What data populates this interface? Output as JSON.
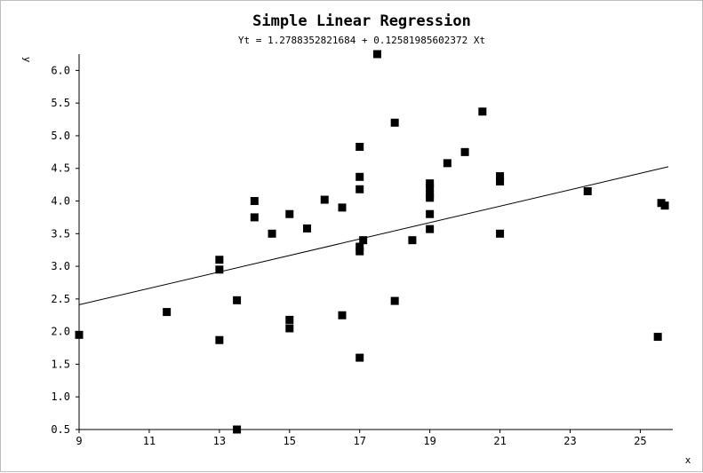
{
  "chart_data": {
    "type": "scatter",
    "title": "Simple Linear Regression",
    "subtitle": "Yt = 1.2788352821684 + 0.12581985602372 Xt",
    "xlabel": "x",
    "ylabel": "y",
    "xlim": [
      9,
      25.8
    ],
    "ylim": [
      0.5,
      6.25
    ],
    "xticks": [
      "9",
      "11",
      "13",
      "15",
      "17",
      "19",
      "21",
      "23",
      "25"
    ],
    "yticks": [
      "0.5",
      "1.0",
      "1.5",
      "2.0",
      "2.5",
      "3.0",
      "3.5",
      "4.0",
      "4.5",
      "5.0",
      "5.5",
      "6.0"
    ],
    "grid": false,
    "colors": {
      "points": "#000000",
      "line": "#000000",
      "axis": "#000000"
    },
    "regression": {
      "intercept": 1.2788352821684,
      "slope": 0.12581985602372
    },
    "series": [
      {
        "x": [
          9,
          11.5,
          13,
          13,
          13,
          13.5,
          13.5,
          14,
          14,
          14.5,
          15,
          15,
          15,
          15.5,
          16,
          16.5,
          16.5,
          17,
          17,
          17,
          17,
          17,
          17,
          17.1,
          17.5,
          18,
          18,
          18.5,
          19,
          19,
          19,
          19,
          19,
          19,
          19.5,
          20,
          20.5,
          21,
          21,
          21,
          23.5,
          25.5,
          25.6,
          25.7
        ],
        "y": [
          1.95,
          2.3,
          3.1,
          2.95,
          1.87,
          2.48,
          0.5,
          4.0,
          3.75,
          3.5,
          3.8,
          2.18,
          2.05,
          3.58,
          4.02,
          3.9,
          2.25,
          4.83,
          4.37,
          4.18,
          3.3,
          3.23,
          1.6,
          3.4,
          6.25,
          5.2,
          2.47,
          3.4,
          4.27,
          4.2,
          4.1,
          3.8,
          3.57,
          4.05,
          4.58,
          4.75,
          5.37,
          4.38,
          4.3,
          3.5,
          4.15,
          1.92,
          3.97,
          3.93
        ]
      }
    ]
  }
}
